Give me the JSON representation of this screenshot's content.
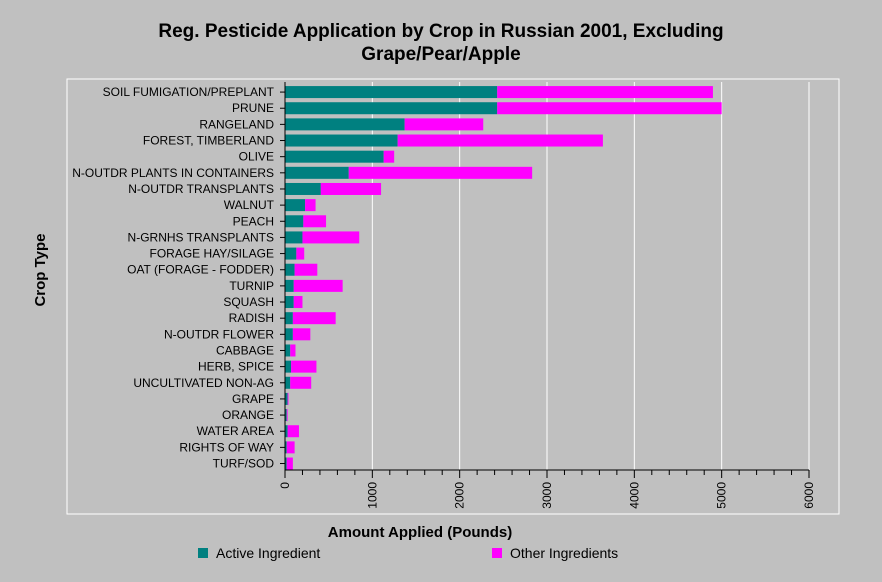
{
  "chart_data": {
    "type": "bar",
    "orientation": "horizontal",
    "stacked": true,
    "title_lines": [
      "Reg. Pesticide Application by Crop in Russian 2001, Excluding",
      "Grape/Pear/Apple"
    ],
    "xlabel": "Amount Applied (Pounds)",
    "ylabel": "Crop Type",
    "xlim": [
      0,
      6000
    ],
    "xticks": [
      "0",
      "1000",
      "2000",
      "3000",
      "4000",
      "5000",
      "6000"
    ],
    "grid": true,
    "legend_position": "bottom",
    "categories": [
      "SOIL FUMIGATION/PREPLANT",
      "PRUNE",
      "RANGELAND",
      "FOREST, TIMBERLAND",
      "OLIVE",
      "N-OUTDR PLANTS IN CONTAINERS",
      "N-OUTDR TRANSPLANTS",
      "WALNUT",
      "PEACH",
      "N-GRNHS TRANSPLANTS",
      "FORAGE HAY/SILAGE",
      "OAT (FORAGE - FODDER)",
      "TURNIP",
      "SQUASH",
      "RADISH",
      "N-OUTDR FLOWER",
      "CABBAGE",
      "HERB, SPICE",
      "UNCULTIVATED NON-AG",
      "GRAPE",
      "ORANGE",
      "WATER AREA",
      "RIGHTS OF WAY",
      "TURF/SOD"
    ],
    "series": [
      {
        "name": "Active Ingredient",
        "color": "#008080",
        "values": [
          2430,
          2430,
          1370,
          1290,
          1130,
          730,
          410,
          230,
          210,
          200,
          130,
          110,
          100,
          100,
          90,
          90,
          60,
          70,
          60,
          30,
          20,
          30,
          20,
          20
        ]
      },
      {
        "name": "Other Ingredients",
        "color": "#ff00ff",
        "values": [
          2470,
          2570,
          900,
          2350,
          120,
          2100,
          690,
          120,
          260,
          650,
          90,
          260,
          560,
          100,
          490,
          200,
          60,
          290,
          240,
          10,
          10,
          130,
          90,
          70
        ]
      }
    ]
  }
}
